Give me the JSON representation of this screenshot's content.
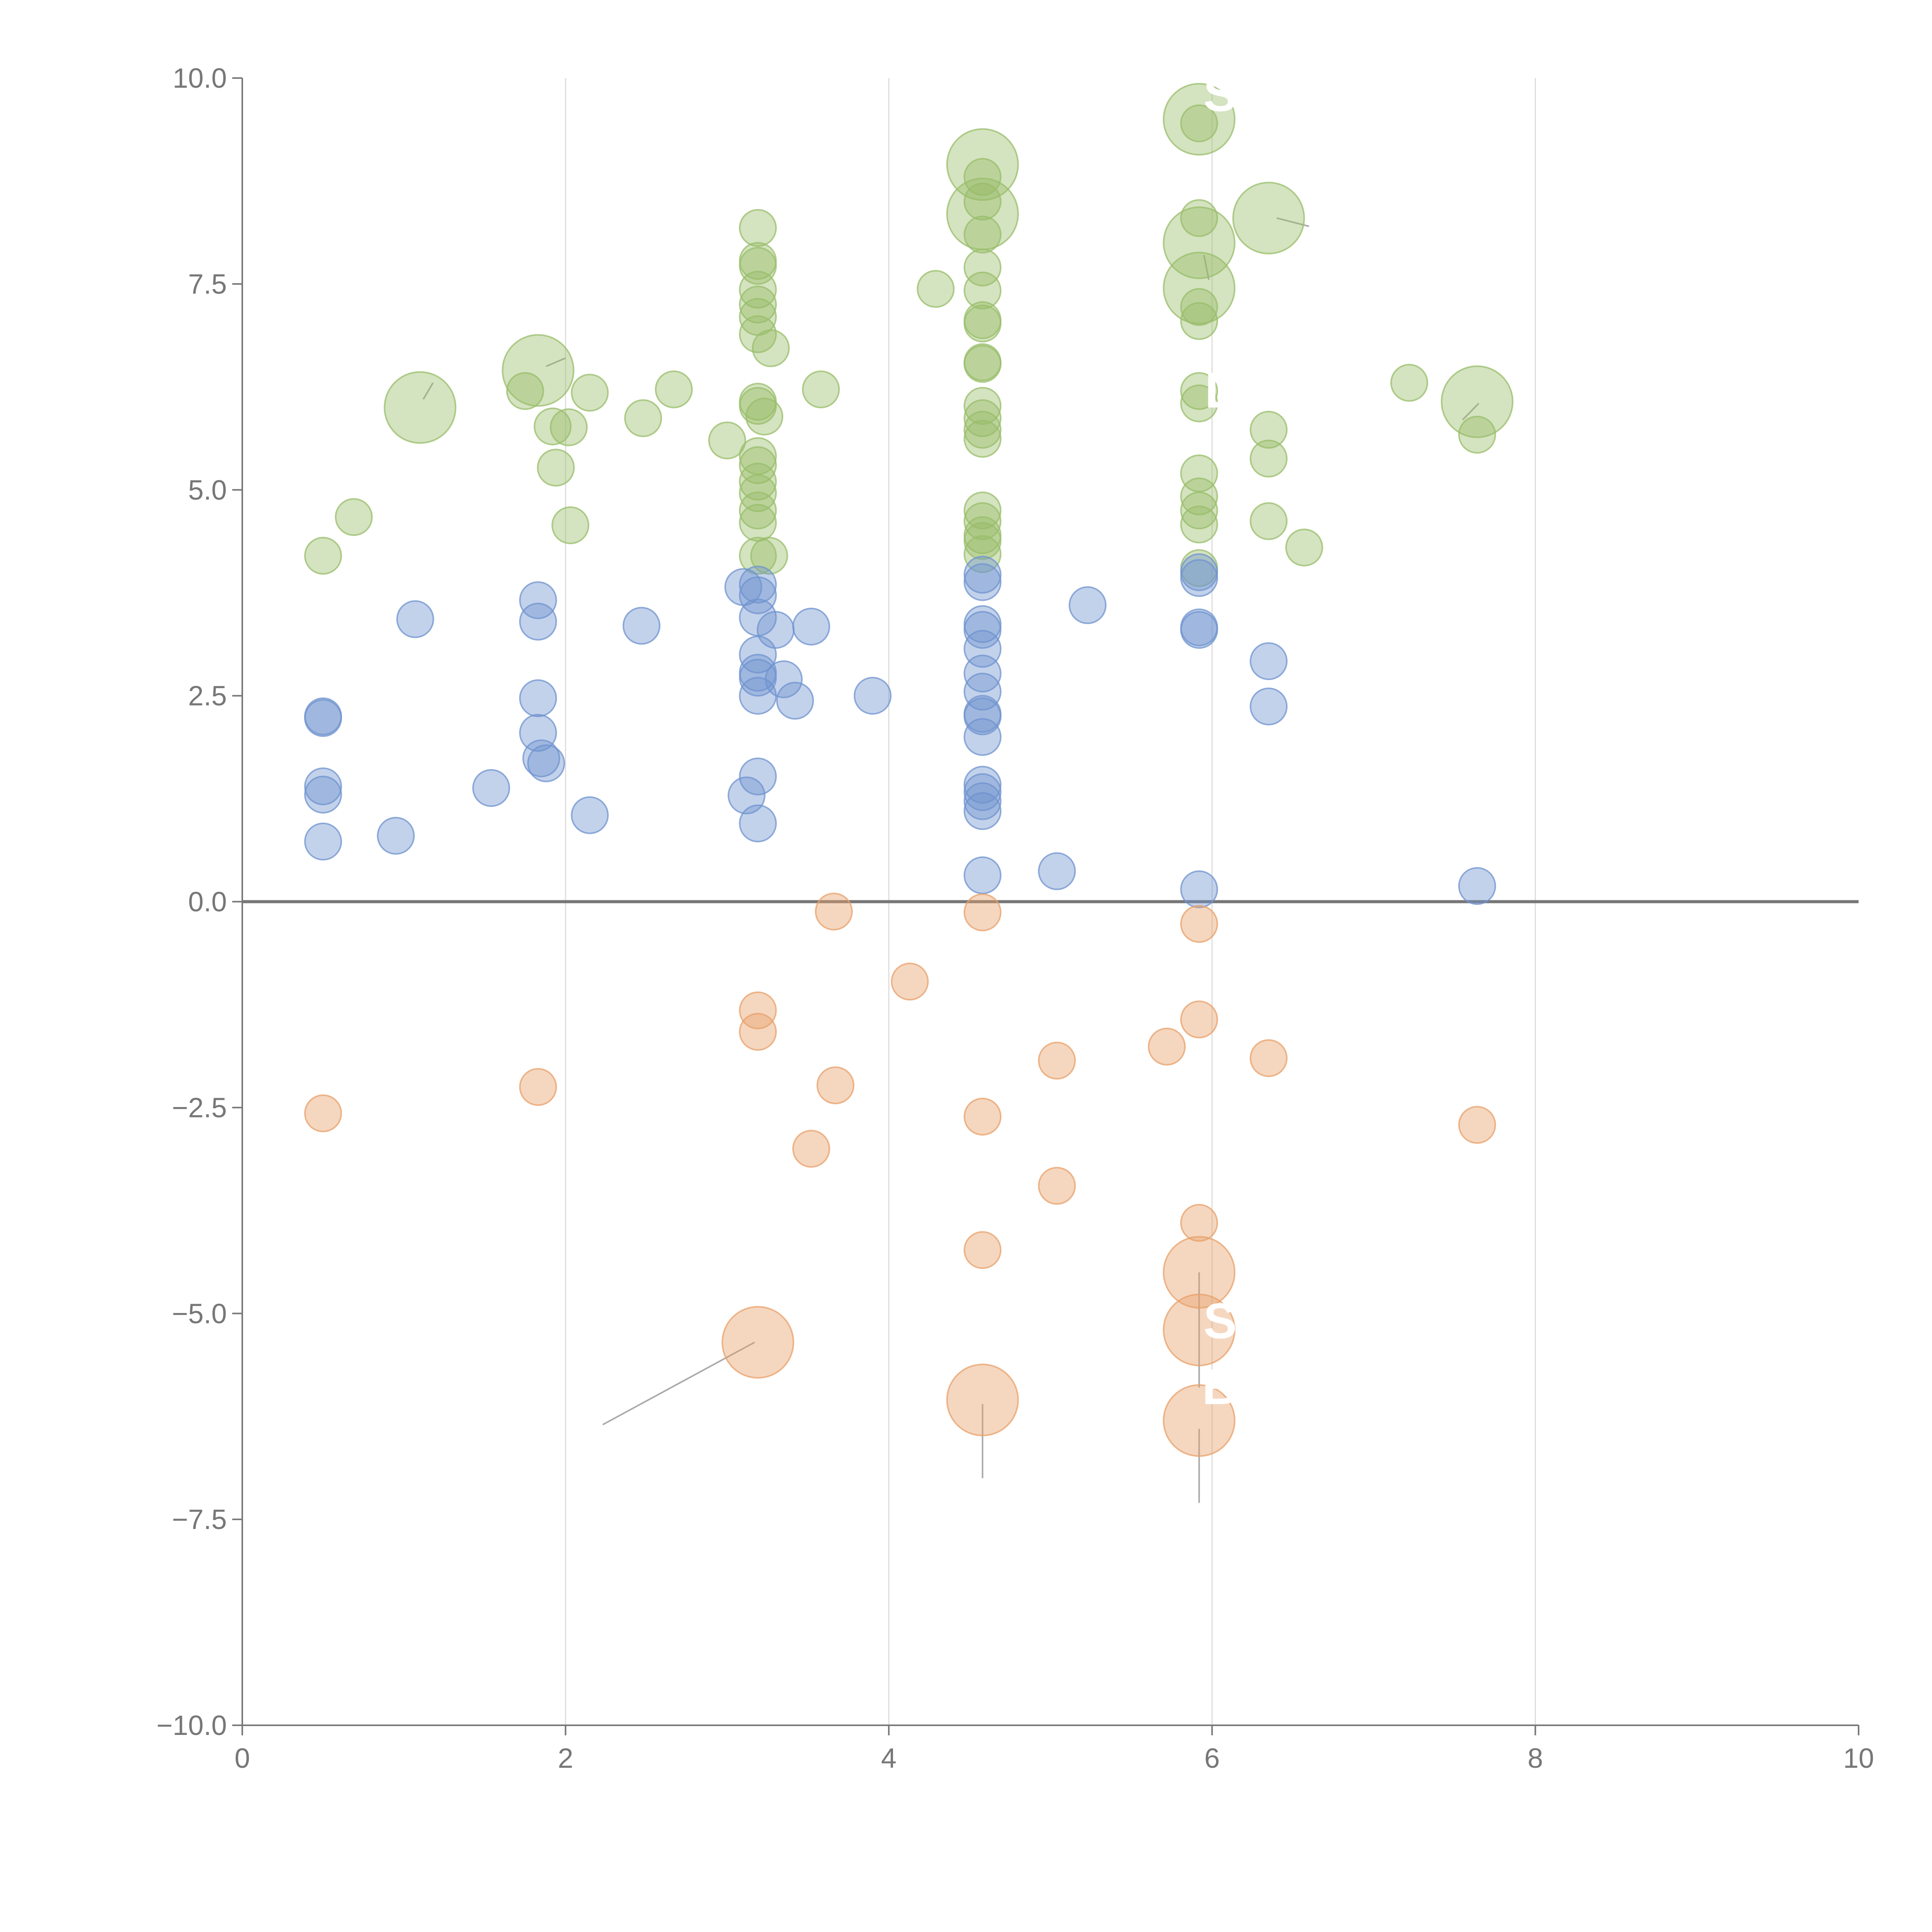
{
  "chart_data": {
    "type": "scatter",
    "bubble": true,
    "title": "",
    "xlabel": "",
    "ylabel": "",
    "xlim": [
      0,
      10
    ],
    "ylim": [
      -10,
      10
    ],
    "x_ticks": [
      "0",
      "2",
      "4",
      "6",
      "8",
      "10"
    ],
    "y_ticks": [
      "−10.0",
      "−7.5",
      "−5.0",
      "−2.5",
      "0.0",
      "2.5",
      "5.0",
      "7.5",
      "10.0"
    ],
    "grid": "vertical at x ticks",
    "zero_line": 0,
    "colors": {
      "green": "#98bd6a",
      "blue": "#6f93cf",
      "orange": "#e8a06a",
      "leader": "#aaaaaa",
      "axis": "#777777"
    },
    "annotations": [
      {
        "text": "S",
        "x": 6.05,
        "y": 9.6
      },
      {
        "text": "S",
        "x": 6.05,
        "y": -5.3
      },
      {
        "text": "B",
        "x": 6.05,
        "y": -6.1
      },
      {
        "text": "L",
        "x": 6.05,
        "y": 6.0
      }
    ],
    "leaders": [
      {
        "x1": 3.17,
        "y1": -5.35,
        "x2": 2.23,
        "y2": -6.35
      },
      {
        "x1": 4.58,
        "y1": -6.1,
        "x2": 4.58,
        "y2": -7.0
      },
      {
        "x1": 5.92,
        "y1": -4.5,
        "x2": 5.92,
        "y2": -5.9
      },
      {
        "x1": 5.92,
        "y1": -6.4,
        "x2": 5.92,
        "y2": -7.3
      },
      {
        "x1": 1.12,
        "y1": 6.1,
        "x2": 1.18,
        "y2": 6.3
      },
      {
        "x1": 1.88,
        "y1": 6.5,
        "x2": 2.0,
        "y2": 6.6
      },
      {
        "x1": 6.4,
        "y1": 8.3,
        "x2": 6.6,
        "y2": 8.2
      },
      {
        "x1": 7.55,
        "y1": 5.85,
        "x2": 7.65,
        "y2": 6.05
      },
      {
        "x1": 5.95,
        "y1": 7.85,
        "x2": 5.98,
        "y2": 7.55
      }
    ],
    "series": [
      {
        "name": "Green",
        "color": "#98bd6a",
        "points": [
          [
            0.5,
            4.2,
            1
          ],
          [
            0.69,
            4.67,
            1
          ],
          [
            1.1,
            6.0,
            3
          ],
          [
            1.75,
            6.2,
            1
          ],
          [
            1.83,
            6.45,
            3
          ],
          [
            1.92,
            5.77,
            1
          ],
          [
            2.02,
            5.76,
            1
          ],
          [
            1.94,
            5.27,
            1
          ],
          [
            2.03,
            4.57,
            1
          ],
          [
            2.15,
            6.18,
            1
          ],
          [
            2.48,
            5.87,
            1
          ],
          [
            2.67,
            6.22,
            1
          ],
          [
            3.0,
            5.6,
            1
          ],
          [
            3.19,
            8.18,
            1
          ],
          [
            3.19,
            7.78,
            1
          ],
          [
            3.19,
            7.72,
            1
          ],
          [
            3.19,
            7.43,
            1
          ],
          [
            3.19,
            7.25,
            1
          ],
          [
            3.19,
            7.1,
            1
          ],
          [
            3.19,
            6.89,
            1
          ],
          [
            3.27,
            6.72,
            1
          ],
          [
            3.19,
            6.07,
            1
          ],
          [
            3.19,
            6.02,
            1
          ],
          [
            3.23,
            5.89,
            1
          ],
          [
            3.19,
            5.41,
            1
          ],
          [
            3.19,
            5.3,
            1
          ],
          [
            3.19,
            5.1,
            1
          ],
          [
            3.19,
            4.96,
            1
          ],
          [
            3.19,
            4.75,
            1
          ],
          [
            3.19,
            4.6,
            1
          ],
          [
            3.19,
            4.2,
            1
          ],
          [
            3.26,
            4.2,
            1
          ],
          [
            3.58,
            6.22,
            1
          ],
          [
            4.29,
            7.44,
            1
          ],
          [
            4.58,
            8.95,
            3
          ],
          [
            4.58,
            8.8,
            1
          ],
          [
            4.58,
            8.5,
            1
          ],
          [
            4.58,
            8.35,
            3
          ],
          [
            4.58,
            8.1,
            1
          ],
          [
            4.58,
            7.7,
            1
          ],
          [
            4.58,
            7.42,
            1
          ],
          [
            4.58,
            7.06,
            1
          ],
          [
            4.58,
            7.02,
            1
          ],
          [
            4.58,
            6.55,
            1
          ],
          [
            4.58,
            6.53,
            1
          ],
          [
            4.58,
            6.02,
            1
          ],
          [
            4.58,
            5.87,
            1
          ],
          [
            4.58,
            5.73,
            1
          ],
          [
            4.58,
            5.62,
            1
          ],
          [
            4.58,
            4.75,
            1
          ],
          [
            4.58,
            4.62,
            1
          ],
          [
            4.58,
            4.45,
            1
          ],
          [
            4.58,
            4.38,
            1
          ],
          [
            4.58,
            4.22,
            1
          ],
          [
            5.92,
            9.5,
            3
          ],
          [
            5.92,
            9.45,
            1
          ],
          [
            5.92,
            8.3,
            1
          ],
          [
            5.92,
            8.0,
            3
          ],
          [
            5.92,
            7.45,
            3
          ],
          [
            5.92,
            7.22,
            1
          ],
          [
            5.92,
            7.05,
            1
          ],
          [
            5.92,
            6.2,
            1
          ],
          [
            5.92,
            6.05,
            1
          ],
          [
            5.92,
            5.2,
            1
          ],
          [
            5.92,
            4.92,
            1
          ],
          [
            5.92,
            4.75,
            1
          ],
          [
            5.92,
            4.58,
            1
          ],
          [
            5.92,
            4.05,
            1
          ],
          [
            6.35,
            8.3,
            3
          ],
          [
            6.35,
            5.73,
            1
          ],
          [
            6.35,
            5.38,
            1
          ],
          [
            6.35,
            4.62,
            1
          ],
          [
            6.57,
            4.3,
            1
          ],
          [
            7.22,
            6.3,
            1
          ],
          [
            7.64,
            6.07,
            3
          ],
          [
            7.64,
            5.67,
            1
          ]
        ]
      },
      {
        "name": "Blue",
        "color": "#6f93cf",
        "points": [
          [
            0.5,
            2.25,
            1
          ],
          [
            0.5,
            2.23,
            1
          ],
          [
            0.5,
            1.4,
            1
          ],
          [
            0.5,
            1.3,
            1
          ],
          [
            0.5,
            0.73,
            1
          ],
          [
            0.95,
            0.8,
            1
          ],
          [
            1.07,
            3.43,
            1
          ],
          [
            1.54,
            1.38,
            1
          ],
          [
            1.83,
            3.66,
            1
          ],
          [
            1.83,
            3.4,
            1
          ],
          [
            1.83,
            2.47,
            1
          ],
          [
            1.83,
            2.05,
            1
          ],
          [
            1.85,
            1.74,
            1
          ],
          [
            1.88,
            1.68,
            1
          ],
          [
            2.15,
            1.05,
            1
          ],
          [
            2.47,
            3.35,
            1
          ],
          [
            3.1,
            3.82,
            1
          ],
          [
            3.19,
            3.85,
            1
          ],
          [
            3.19,
            3.72,
            1
          ],
          [
            3.19,
            3.45,
            1
          ],
          [
            3.3,
            3.3,
            1
          ],
          [
            3.19,
            3.0,
            1
          ],
          [
            3.19,
            2.78,
            1
          ],
          [
            3.19,
            2.72,
            1
          ],
          [
            3.35,
            2.7,
            1
          ],
          [
            3.19,
            2.5,
            1
          ],
          [
            3.42,
            2.44,
            1
          ],
          [
            3.19,
            1.52,
            1
          ],
          [
            3.12,
            1.29,
            1
          ],
          [
            3.19,
            0.95,
            1
          ],
          [
            3.52,
            3.34,
            1
          ],
          [
            3.9,
            2.5,
            1
          ],
          [
            4.58,
            3.97,
            1
          ],
          [
            4.58,
            3.88,
            1
          ],
          [
            4.58,
            3.37,
            1
          ],
          [
            4.58,
            3.3,
            1
          ],
          [
            4.58,
            3.07,
            1
          ],
          [
            4.58,
            2.77,
            1
          ],
          [
            4.58,
            2.55,
            1
          ],
          [
            4.58,
            2.28,
            1
          ],
          [
            4.58,
            2.25,
            1
          ],
          [
            4.58,
            2.0,
            1
          ],
          [
            4.58,
            1.42,
            1
          ],
          [
            4.58,
            1.33,
            1
          ],
          [
            4.58,
            1.22,
            1
          ],
          [
            4.58,
            1.1,
            1
          ],
          [
            4.58,
            0.32,
            1
          ],
          [
            5.04,
            0.37,
            1
          ],
          [
            5.23,
            3.6,
            1
          ],
          [
            5.92,
            4.0,
            1
          ],
          [
            5.92,
            3.93,
            1
          ],
          [
            5.92,
            3.33,
            1
          ],
          [
            5.92,
            3.3,
            1
          ],
          [
            5.92,
            0.15,
            1
          ],
          [
            6.35,
            2.92,
            1
          ],
          [
            6.35,
            2.37,
            1
          ],
          [
            7.64,
            0.19,
            1
          ]
        ]
      },
      {
        "name": "Orange",
        "color": "#e8a06a",
        "points": [
          [
            0.5,
            -2.57,
            1
          ],
          [
            1.83,
            -2.25,
            1
          ],
          [
            3.19,
            -1.32,
            1
          ],
          [
            3.19,
            -1.58,
            1
          ],
          [
            3.19,
            -5.35,
            3
          ],
          [
            3.52,
            -3.0,
            1
          ],
          [
            3.66,
            -0.12,
            1
          ],
          [
            3.67,
            -2.23,
            1
          ],
          [
            4.13,
            -0.97,
            1
          ],
          [
            4.58,
            -0.13,
            1
          ],
          [
            4.58,
            -2.61,
            1
          ],
          [
            4.58,
            -4.23,
            1
          ],
          [
            4.58,
            -6.05,
            3
          ],
          [
            5.04,
            -1.93,
            1
          ],
          [
            5.04,
            -3.45,
            1
          ],
          [
            5.72,
            -1.76,
            1
          ],
          [
            5.92,
            -0.27,
            1
          ],
          [
            5.92,
            -1.43,
            1
          ],
          [
            5.92,
            -3.9,
            1
          ],
          [
            5.92,
            -4.5,
            3
          ],
          [
            5.92,
            -5.2,
            3
          ],
          [
            5.92,
            -6.3,
            3
          ],
          [
            6.35,
            -1.9,
            1
          ],
          [
            7.64,
            -2.71,
            1
          ]
        ]
      }
    ]
  }
}
